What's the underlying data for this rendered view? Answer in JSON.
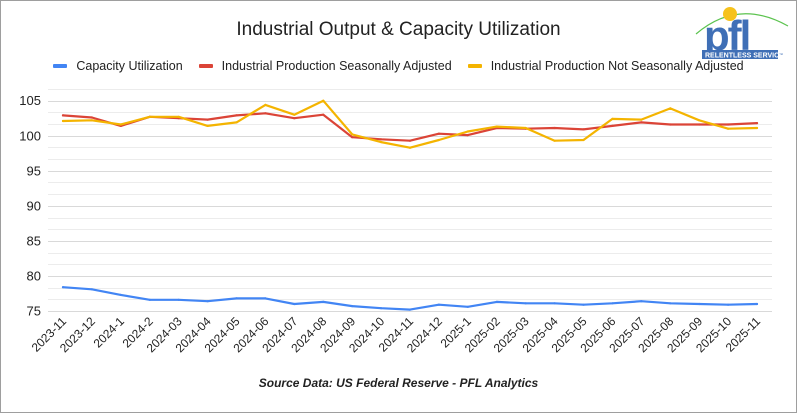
{
  "chart_data": {
    "type": "line",
    "title": "Industrial Output & Capacity Utilization",
    "xlabel": "",
    "ylabel": "",
    "ylim": [
      75,
      106.67
    ],
    "yticks": [
      75,
      80,
      85,
      90,
      95,
      100,
      105
    ],
    "grid": true,
    "legend_position": "top",
    "categories": [
      "2023-11",
      "2023-12",
      "2024-1",
      "2024-2",
      "2024-03",
      "2024-04",
      "2024-05",
      "2024-06",
      "2024-07",
      "2024-08",
      "2024-09",
      "2024-10",
      "2024-11",
      "2024-12",
      "2025-1",
      "2025-02",
      "2025-03",
      "2025-04",
      "2025-05",
      "2025-06",
      "2025-07",
      "2025-08",
      "2025-09",
      "2025-10",
      "2025-11"
    ],
    "series": [
      {
        "name": "Capacity Utilization",
        "color": "#4285f4",
        "values": [
          78.4,
          78.1,
          77.3,
          76.6,
          76.6,
          76.4,
          76.8,
          76.8,
          76.0,
          76.3,
          75.7,
          75.4,
          75.2,
          75.9,
          75.6,
          76.3,
          76.1,
          76.1,
          75.9,
          76.1,
          76.4,
          76.1,
          76.0,
          75.9,
          76.0
        ]
      },
      {
        "name": "Industrial Production Seasonally Adjusted",
        "color": "#db4437",
        "values": [
          102.9,
          102.6,
          101.4,
          102.7,
          102.5,
          102.3,
          102.9,
          103.2,
          102.5,
          103.0,
          99.8,
          99.5,
          99.3,
          100.3,
          100.1,
          101.1,
          101.0,
          101.1,
          100.9,
          101.4,
          101.9,
          101.6,
          101.6,
          101.6,
          101.8
        ]
      },
      {
        "name": "Industrial Production Not Seasonally Adjusted",
        "color": "#f4b400",
        "values": [
          102.1,
          102.2,
          101.6,
          102.7,
          102.7,
          101.4,
          101.9,
          104.4,
          103.0,
          105.0,
          100.2,
          99.1,
          98.3,
          99.4,
          100.6,
          101.3,
          101.1,
          99.3,
          99.4,
          102.4,
          102.3,
          103.9,
          102.2,
          101.0,
          101.1
        ]
      }
    ],
    "source": "Source Data: US Federal Reserve - PFL Analytics"
  },
  "logo": {
    "text": "pfl",
    "tagline": "RELENTLESS SERVICE",
    "trademark": "™",
    "colors": {
      "letters": "#3f6fb6",
      "sun": "#f6c21c",
      "arc": "#5cc34f"
    }
  },
  "colors": {
    "gridline": "#d9d9d9",
    "gridline_minor": "#ececec",
    "text": "#222222"
  }
}
